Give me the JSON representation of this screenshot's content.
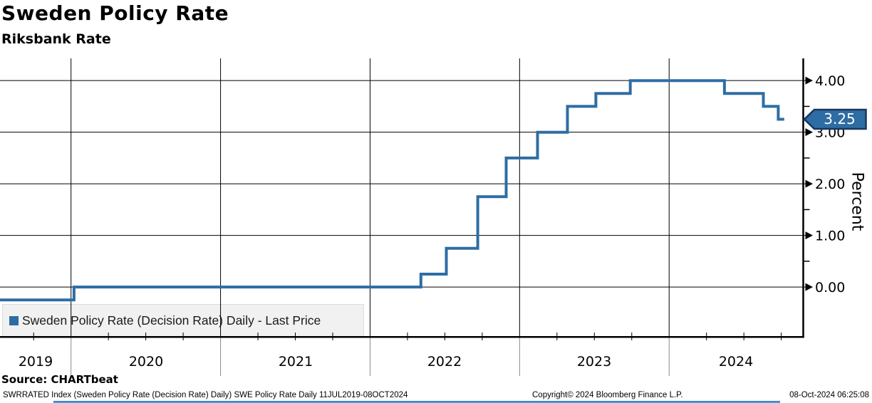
{
  "header": {
    "title": "Sweden Policy Rate",
    "subtitle": "Riksbank Rate"
  },
  "legend": {
    "marker_color": "#2e6da4",
    "label": "Sweden Policy Rate (Decision Rate) Daily - Last Price"
  },
  "y_axis": {
    "title": "Percent",
    "major_ticks": [
      "4.00",
      "3.00",
      "2.00",
      "1.00",
      "0.00"
    ]
  },
  "x_axis": {
    "years": [
      "2019",
      "2020",
      "2021",
      "2022",
      "2023",
      "2024"
    ]
  },
  "last_price_badge": {
    "value": "3.25",
    "fill": "#2e6da4",
    "border": "#17375e",
    "text_color": "#ffffff"
  },
  "source_line": "Source: CHARTbeat",
  "footer": {
    "left": "SWRRATED Index (Sweden Policy Rate (Decision Rate) Daily) SWE Policy Rate  Daily 11JUL2019-08OCT2024",
    "center": "Copyright© 2024 Bloomberg Finance L.P.",
    "right": "08-Oct-2024 06:25:08"
  },
  "chart_data": {
    "type": "line",
    "line_style": "step-after",
    "title": "Sweden Policy Rate",
    "subtitle": "Riksbank Rate",
    "ylabel": "Percent",
    "xlabel": "",
    "xlim": [
      2019.525,
      2024.897
    ],
    "ylim": [
      -0.95,
      4.43
    ],
    "yticks_major": [
      4,
      3,
      2,
      1,
      0
    ],
    "yticks_minor": [
      3.5,
      2.5,
      1.5,
      0.5
    ],
    "x_gridline_years": [
      2020,
      2021,
      2022,
      2023,
      2024
    ],
    "grid": true,
    "legend_position": "bottom-left",
    "last_price": 3.25,
    "series": [
      {
        "name": "Sweden Policy Rate (Decision Rate) Daily - Last Price",
        "color": "#2e6da4",
        "points": [
          [
            2019.525,
            -0.25
          ],
          [
            2020.02,
            0.0
          ],
          [
            2022.34,
            0.25
          ],
          [
            2022.51,
            0.75
          ],
          [
            2022.72,
            1.75
          ],
          [
            2022.91,
            2.5
          ],
          [
            2023.12,
            3.0
          ],
          [
            2023.32,
            3.5
          ],
          [
            2023.51,
            3.75
          ],
          [
            2023.74,
            4.0
          ],
          [
            2024.37,
            3.75
          ],
          [
            2024.63,
            3.5
          ],
          [
            2024.73,
            3.25
          ],
          [
            2024.77,
            3.25
          ]
        ]
      }
    ]
  }
}
